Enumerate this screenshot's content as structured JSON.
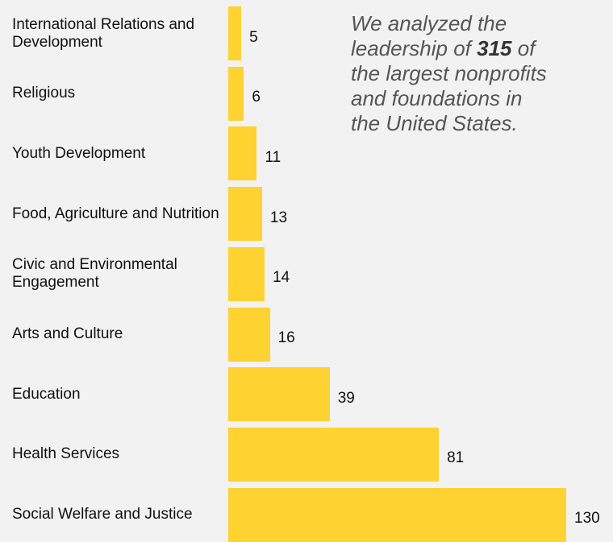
{
  "chart_data": {
    "type": "bar",
    "orientation": "horizontal",
    "color": "#fdd231",
    "categories": [
      "International Relations and Development",
      "Religious",
      "Youth Development",
      "Food, Agriculture and Nutrition",
      "Civic and Environmental Engagement",
      "Arts and Culture",
      "Education",
      "Health Services",
      "Social Welfare and Justice"
    ],
    "values": [
      5,
      6,
      11,
      13,
      14,
      16,
      39,
      81,
      130
    ],
    "annotation": [
      "We analyzed the leadership of",
      "315",
      "of the largest nonprofits and foundations in the United States."
    ]
  }
}
